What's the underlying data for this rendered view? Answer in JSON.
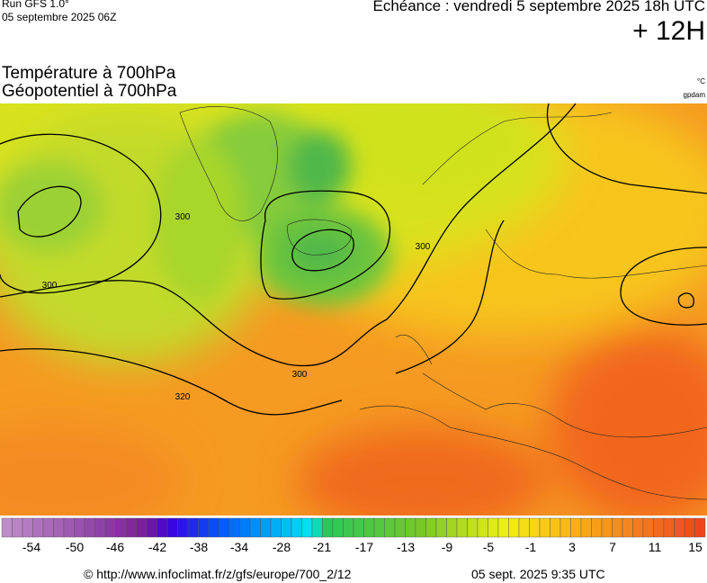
{
  "header": {
    "run": "Run GFS 1.0°",
    "run_date": "05 septembre 2025 06Z",
    "echeance": "Echéance : vendredi 5 septembre 2025 18h UTC",
    "lead": "+ 12H"
  },
  "titles": [
    "Température à 700hPa",
    "Géopotentiel à 700hPa"
  ],
  "units": [
    "°C",
    "gpdam"
  ],
  "contour_labels": [
    "300",
    "300",
    "300",
    "300",
    "320"
  ],
  "colorbar": {
    "labels": [
      -54,
      -50,
      -46,
      -42,
      -38,
      -34,
      -28,
      -21,
      -17,
      -13,
      -9,
      -5,
      -1,
      3,
      7,
      11,
      15
    ]
  },
  "footer": {
    "source": "© http://www.infoclimat.fr/z/gfs/europe/700_2/12",
    "timestamp": "05 sept. 2025  9:35 UTC"
  }
}
